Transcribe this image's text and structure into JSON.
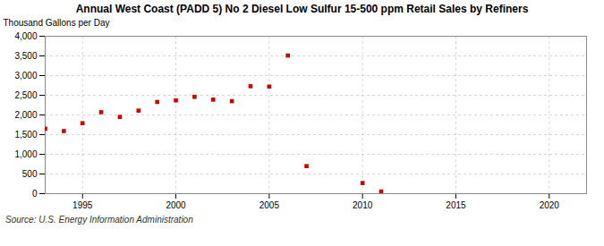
{
  "chart_data": {
    "type": "scatter",
    "title": "Annual West Coast (PADD 5) No 2 Diesel Low Sulfur 15-500 ppm Retail Sales by Refiners",
    "ylabel": "Thousand Gallons per Day",
    "caption": "Source: U.S. Energy Information Administration",
    "x": [
      1993,
      1994,
      1995,
      1996,
      1997,
      1998,
      1999,
      2000,
      2001,
      2002,
      2003,
      2004,
      2005,
      2006,
      2007,
      2010,
      2011
    ],
    "values": [
      1650,
      1590,
      1790,
      2070,
      1950,
      2110,
      2330,
      2370,
      2460,
      2390,
      2350,
      2730,
      2720,
      3510,
      700,
      270,
      55
    ],
    "color": "#cc0000",
    "marker": "square",
    "xlim": [
      1993,
      2022
    ],
    "ylim": [
      0,
      4000
    ],
    "xticks": [
      1995,
      2000,
      2005,
      2010,
      2015,
      2020
    ],
    "yticks": [
      0,
      500,
      {
        "value": 1000,
        "label": "1,000"
      },
      {
        "value": 1500,
        "label": "1,500"
      },
      {
        "value": 2000,
        "label": "2,000"
      },
      {
        "value": 2500,
        "label": "2,500"
      },
      {
        "value": 3000,
        "label": "3,000"
      },
      {
        "value": 3500,
        "label": "3,500"
      },
      {
        "value": 4000,
        "label": "4,000"
      }
    ],
    "grid": true
  }
}
